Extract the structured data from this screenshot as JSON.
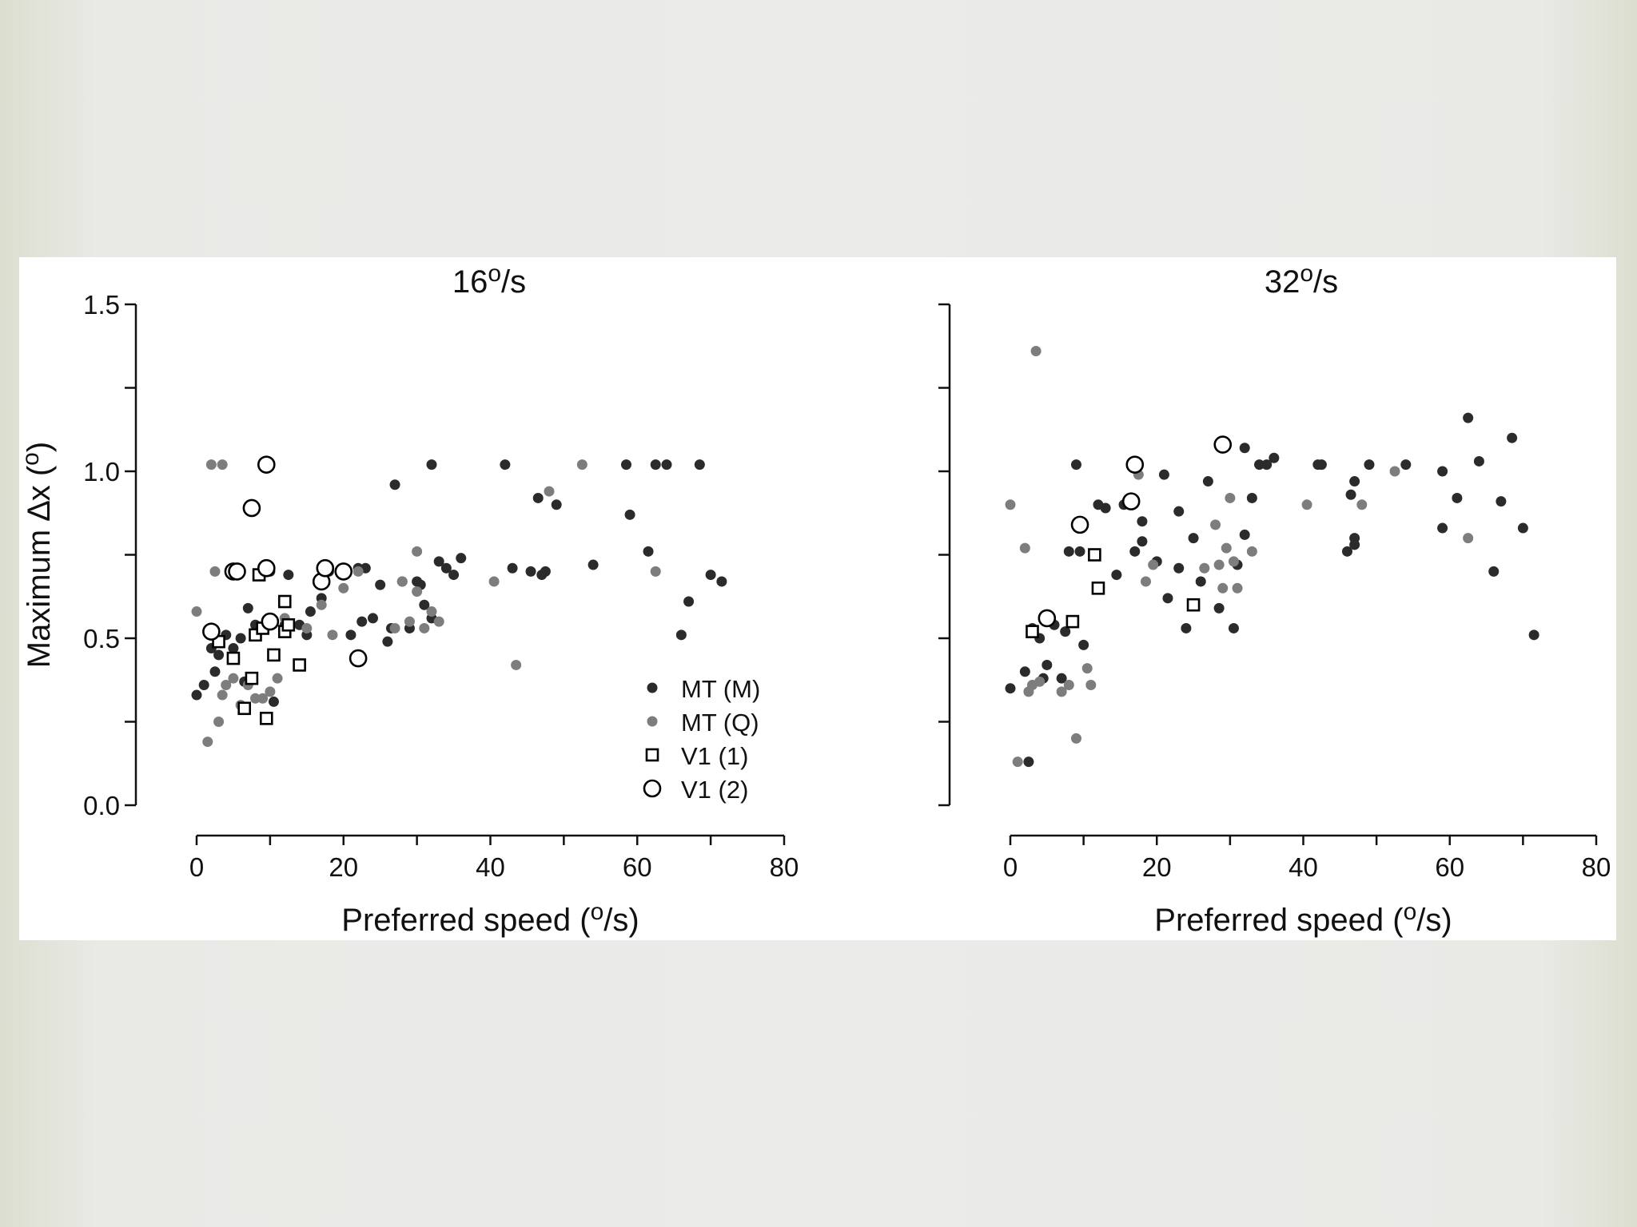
{
  "chart_data": [
    {
      "type": "scatter",
      "title": "16 °/s",
      "title_main": "16",
      "title_sup": "o",
      "title_unit": "/s",
      "xlabel_main": "Preferred speed (",
      "xlabel_sup": "o",
      "xlabel_end": "/s)",
      "ylabel_main": "Maximum ∆x (",
      "ylabel_sup": "o",
      "ylabel_end": ")",
      "xlim": [
        0,
        80
      ],
      "ylim": [
        0,
        1.5
      ],
      "x_ticks": [
        "0",
        "20",
        "40",
        "60",
        "80"
      ],
      "y_ticks": [
        "0.0",
        "0.5",
        "1.0",
        "1.5"
      ],
      "legend": [
        {
          "label": "MT (M)",
          "marker": "dot",
          "color": "#2b2b2b"
        },
        {
          "label": "MT (Q)",
          "marker": "dot",
          "color": "#7a7a7a"
        },
        {
          "label": "V1 (1)",
          "marker": "square",
          "color": "#000000"
        },
        {
          "label": "V1 (2)",
          "marker": "circle",
          "color": "#000000"
        }
      ],
      "series": [
        {
          "name": "MT (M)",
          "points": [
            [
              0,
              0.33
            ],
            [
              1,
              0.36
            ],
            [
              2,
              0.47
            ],
            [
              2.5,
              0.4
            ],
            [
              3,
              0.45
            ],
            [
              4,
              0.51
            ],
            [
              5,
              0.47
            ],
            [
              6,
              0.5
            ],
            [
              6.5,
              0.37
            ],
            [
              7,
              0.59
            ],
            [
              8,
              0.54
            ],
            [
              9,
              0.53
            ],
            [
              10,
              0.7
            ],
            [
              10.5,
              0.31
            ],
            [
              12,
              0.54
            ],
            [
              12.5,
              0.69
            ],
            [
              14,
              0.54
            ],
            [
              15,
              0.51
            ],
            [
              15.5,
              0.58
            ],
            [
              17,
              0.62
            ],
            [
              18,
              0.7
            ],
            [
              21,
              0.51
            ],
            [
              22,
              0.71
            ],
            [
              22.5,
              0.55
            ],
            [
              23,
              0.71
            ],
            [
              24,
              0.56
            ],
            [
              25,
              0.66
            ],
            [
              26,
              0.49
            ],
            [
              26.5,
              0.53
            ],
            [
              27,
              0.96
            ],
            [
              28,
              0.67
            ],
            [
              29,
              0.53
            ],
            [
              30,
              0.67
            ],
            [
              30.5,
              0.66
            ],
            [
              31,
              0.6
            ],
            [
              32,
              1.02
            ],
            [
              32,
              0.56
            ],
            [
              33,
              0.73
            ],
            [
              34,
              0.71
            ],
            [
              35,
              0.69
            ],
            [
              36,
              0.74
            ],
            [
              42,
              1.02
            ],
            [
              43,
              0.71
            ],
            [
              45.5,
              0.7
            ],
            [
              46.5,
              0.92
            ],
            [
              47,
              0.69
            ],
            [
              47.5,
              0.7
            ],
            [
              49,
              0.9
            ],
            [
              54,
              0.72
            ],
            [
              58.5,
              1.02
            ],
            [
              59,
              0.87
            ],
            [
              61.5,
              0.76
            ],
            [
              62.5,
              1.02
            ],
            [
              64,
              1.02
            ],
            [
              66,
              0.51
            ],
            [
              67,
              0.61
            ],
            [
              68.5,
              1.02
            ],
            [
              70,
              0.69
            ],
            [
              71.5,
              0.67
            ]
          ]
        },
        {
          "name": "MT (Q)",
          "points": [
            [
              0,
              0.58
            ],
            [
              1.5,
              0.19
            ],
            [
              2,
              1.02
            ],
            [
              2.5,
              0.7
            ],
            [
              3,
              0.25
            ],
            [
              3.5,
              0.33
            ],
            [
              3.5,
              1.02
            ],
            [
              4,
              0.36
            ],
            [
              5,
              0.38
            ],
            [
              6,
              0.3
            ],
            [
              7,
              0.36
            ],
            [
              8,
              0.32
            ],
            [
              9,
              0.32
            ],
            [
              10,
              0.34
            ],
            [
              11,
              0.38
            ],
            [
              12,
              0.56
            ],
            [
              15,
              0.53
            ],
            [
              17,
              0.6
            ],
            [
              18.5,
              0.51
            ],
            [
              20,
              0.65
            ],
            [
              22,
              0.7
            ],
            [
              27,
              0.53
            ],
            [
              28,
              0.67
            ],
            [
              29,
              0.55
            ],
            [
              30,
              0.76
            ],
            [
              30,
              0.64
            ],
            [
              31,
              0.53
            ],
            [
              32,
              0.58
            ],
            [
              33,
              0.55
            ],
            [
              40.5,
              0.67
            ],
            [
              43.5,
              0.42
            ],
            [
              48,
              0.94
            ],
            [
              52.5,
              1.02
            ],
            [
              62.5,
              0.7
            ]
          ]
        },
        {
          "name": "V1 (1)",
          "points": [
            [
              3,
              0.49
            ],
            [
              5,
              0.44
            ],
            [
              6.5,
              0.29
            ],
            [
              7.5,
              0.38
            ],
            [
              8,
              0.51
            ],
            [
              8.5,
              0.69
            ],
            [
              9,
              0.53
            ],
            [
              9.5,
              0.26
            ],
            [
              10.5,
              0.45
            ],
            [
              12,
              0.61
            ],
            [
              12,
              0.52
            ],
            [
              12.5,
              0.54
            ],
            [
              14,
              0.42
            ]
          ]
        },
        {
          "name": "V1 (2)",
          "points": [
            [
              2,
              0.52
            ],
            [
              5,
              0.7
            ],
            [
              5.5,
              0.7
            ],
            [
              9.5,
              1.02
            ],
            [
              7.5,
              0.89
            ],
            [
              9.5,
              0.71
            ],
            [
              10,
              0.55
            ],
            [
              17,
              0.67
            ],
            [
              17.5,
              0.71
            ],
            [
              20,
              0.7
            ],
            [
              22,
              0.44
            ]
          ]
        }
      ]
    },
    {
      "type": "scatter",
      "title": "32 °/s",
      "title_main": "32",
      "title_sup": "o",
      "title_unit": "/s",
      "xlabel_main": "Preferred speed (",
      "xlabel_sup": "o",
      "xlabel_end": "/s)",
      "xlim": [
        0,
        80
      ],
      "ylim": [
        0,
        1.5
      ],
      "x_ticks": [
        "0",
        "20",
        "40",
        "60",
        "80"
      ],
      "series": [
        {
          "name": "MT (M)",
          "points": [
            [
              0,
              0.35
            ],
            [
              2,
              0.4
            ],
            [
              2.5,
              0.13
            ],
            [
              3,
              0.53
            ],
            [
              4,
              0.5
            ],
            [
              4.5,
              0.38
            ],
            [
              5,
              0.42
            ],
            [
              5.5,
              0.55
            ],
            [
              6,
              0.54
            ],
            [
              7,
              0.38
            ],
            [
              7.5,
              0.52
            ],
            [
              8,
              0.76
            ],
            [
              9,
              1.02
            ],
            [
              9.5,
              0.76
            ],
            [
              10,
              0.48
            ],
            [
              12,
              0.9
            ],
            [
              13,
              0.89
            ],
            [
              14.5,
              0.69
            ],
            [
              15.5,
              0.9
            ],
            [
              17,
              0.76
            ],
            [
              18,
              0.79
            ],
            [
              18,
              0.85
            ],
            [
              20,
              0.73
            ],
            [
              21,
              0.99
            ],
            [
              21.5,
              0.62
            ],
            [
              23,
              0.88
            ],
            [
              23,
              0.71
            ],
            [
              24,
              0.53
            ],
            [
              25,
              0.8
            ],
            [
              26,
              0.67
            ],
            [
              27,
              0.97
            ],
            [
              28.5,
              0.59
            ],
            [
              30.5,
              0.53
            ],
            [
              31,
              0.72
            ],
            [
              32,
              1.07
            ],
            [
              32,
              0.81
            ],
            [
              33,
              0.92
            ],
            [
              34,
              1.02
            ],
            [
              35,
              1.02
            ],
            [
              36,
              1.04
            ],
            [
              42,
              1.02
            ],
            [
              42.5,
              1.02
            ],
            [
              46,
              0.76
            ],
            [
              46.5,
              0.93
            ],
            [
              47,
              0.97
            ],
            [
              47,
              0.78
            ],
            [
              47,
              0.8
            ],
            [
              49,
              1.02
            ],
            [
              54,
              1.02
            ],
            [
              59,
              1.0
            ],
            [
              59,
              0.83
            ],
            [
              61,
              0.92
            ],
            [
              62.5,
              1.16
            ],
            [
              64,
              1.03
            ],
            [
              66,
              0.7
            ],
            [
              67,
              0.91
            ],
            [
              68.5,
              1.1
            ],
            [
              70,
              0.83
            ],
            [
              71.5,
              0.51
            ]
          ]
        },
        {
          "name": "MT (Q)",
          "points": [
            [
              0,
              0.9
            ],
            [
              1,
              0.13
            ],
            [
              2,
              0.77
            ],
            [
              2.5,
              0.34
            ],
            [
              3,
              0.36
            ],
            [
              3.5,
              1.36
            ],
            [
              4,
              0.37
            ],
            [
              7,
              0.34
            ],
            [
              8,
              0.36
            ],
            [
              9,
              0.2
            ],
            [
              10.5,
              0.41
            ],
            [
              11,
              0.36
            ],
            [
              17.5,
              0.99
            ],
            [
              18.5,
              0.67
            ],
            [
              19.5,
              0.72
            ],
            [
              26.5,
              0.71
            ],
            [
              28,
              0.84
            ],
            [
              28.5,
              0.72
            ],
            [
              29,
              0.65
            ],
            [
              29.5,
              0.77
            ],
            [
              30,
              0.92
            ],
            [
              30.5,
              0.73
            ],
            [
              31,
              0.65
            ],
            [
              33,
              0.76
            ],
            [
              40.5,
              0.9
            ],
            [
              48,
              0.9
            ],
            [
              52.5,
              1.0
            ],
            [
              62.5,
              0.8
            ]
          ]
        },
        {
          "name": "V1 (1)",
          "points": [
            [
              3,
              0.52
            ],
            [
              8.5,
              0.55
            ],
            [
              11.5,
              0.75
            ],
            [
              12,
              0.65
            ],
            [
              25,
              0.6
            ]
          ]
        },
        {
          "name": "V1 (2)",
          "points": [
            [
              5,
              0.56
            ],
            [
              9.5,
              0.84
            ],
            [
              16.5,
              0.91
            ],
            [
              17,
              1.02
            ],
            [
              29,
              1.08
            ]
          ]
        }
      ]
    }
  ]
}
